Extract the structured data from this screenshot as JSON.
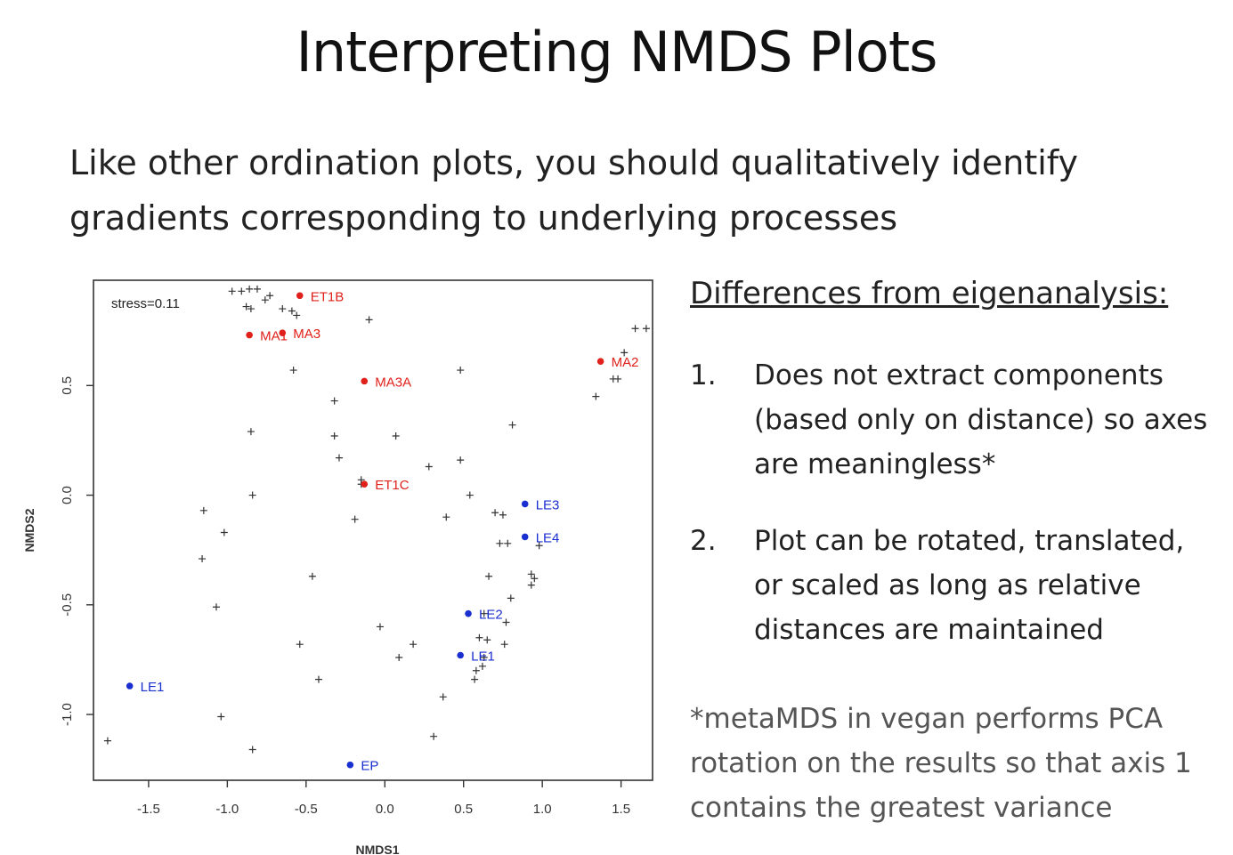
{
  "title": "Interpreting NMDS Plots",
  "intro": "Like other ordination plots, you should qualitatively identify gradients corresponding to underlying processes",
  "differences": {
    "heading": "Differences from eigenanalysis:",
    "items": [
      {
        "num": "1.",
        "text": "Does not extract components (based only on distance) so axes are meaningless*"
      },
      {
        "num": "2.",
        "text": "Plot can be rotated, translated, or scaled as long as relative distances are maintained"
      }
    ],
    "footnote": "*metaMDS in vegan performs PCA rotation on the results so that axis 1 contains the greatest variance"
  },
  "chart_data": {
    "type": "scatter",
    "xlabel": "NMDS1",
    "ylabel": "NMDS2",
    "annotation": "stress=0.11",
    "xlim": [
      -1.85,
      1.7
    ],
    "ylim": [
      -1.3,
      0.98
    ],
    "xticks": [
      -1.5,
      -1.0,
      -0.5,
      0.0,
      0.5,
      1.0,
      1.5
    ],
    "xtick_labels": [
      "-1.5",
      "-1.0",
      "-0.5",
      "0.0",
      "0.5",
      "1.0",
      "1.5"
    ],
    "yticks": [
      -1.0,
      -0.5,
      0.0,
      0.5
    ],
    "ytick_labels": [
      "-1.0",
      "-0.5",
      "0.0",
      "0.5"
    ],
    "colors": {
      "red": "#e0201a",
      "blue": "#1a2fd0",
      "cross": "#333333",
      "axis": "#333333"
    },
    "labeled_points": [
      {
        "label": "ET1B",
        "x": -0.54,
        "y": 0.91,
        "color": "red"
      },
      {
        "label": "MA1",
        "x": -0.86,
        "y": 0.73,
        "color": "red"
      },
      {
        "label": "MA3",
        "x": -0.65,
        "y": 0.74,
        "color": "red"
      },
      {
        "label": "MA3A",
        "x": -0.13,
        "y": 0.52,
        "color": "red"
      },
      {
        "label": "MA2",
        "x": 1.37,
        "y": 0.61,
        "color": "red"
      },
      {
        "label": "ET1C",
        "x": -0.13,
        "y": 0.05,
        "color": "red"
      },
      {
        "label": "LE3",
        "x": 0.89,
        "y": -0.04,
        "color": "blue"
      },
      {
        "label": "LE4",
        "x": 0.89,
        "y": -0.19,
        "color": "blue"
      },
      {
        "label": "LE2",
        "x": 0.53,
        "y": -0.54,
        "color": "blue"
      },
      {
        "label": "LE1",
        "x": 0.48,
        "y": -0.73,
        "color": "blue"
      },
      {
        "label": "LE1",
        "x": -1.62,
        "y": -0.87,
        "color": "blue"
      },
      {
        "label": "EP",
        "x": -0.22,
        "y": -1.23,
        "color": "blue"
      }
    ],
    "cross_points": [
      [
        -0.97,
        0.93
      ],
      [
        -0.91,
        0.93
      ],
      [
        -0.86,
        0.94
      ],
      [
        -0.81,
        0.94
      ],
      [
        -0.76,
        0.89
      ],
      [
        -0.73,
        0.91
      ],
      [
        -0.88,
        0.86
      ],
      [
        -0.85,
        0.85
      ],
      [
        -0.65,
        0.85
      ],
      [
        -0.59,
        0.84
      ],
      [
        -0.56,
        0.82
      ],
      [
        -0.1,
        0.8
      ],
      [
        -0.58,
        0.57
      ],
      [
        0.48,
        0.57
      ],
      [
        -0.32,
        0.43
      ],
      [
        -0.85,
        0.29
      ],
      [
        -0.32,
        0.27
      ],
      [
        0.07,
        0.27
      ],
      [
        0.81,
        0.32
      ],
      [
        -0.29,
        0.17
      ],
      [
        0.28,
        0.13
      ],
      [
        0.48,
        0.16
      ],
      [
        -0.15,
        0.07
      ],
      [
        -0.15,
        0.05
      ],
      [
        -0.84,
        0.0
      ],
      [
        0.54,
        0.0
      ],
      [
        -1.15,
        -0.07
      ],
      [
        0.7,
        -0.08
      ],
      [
        0.75,
        -0.09
      ],
      [
        0.39,
        -0.1
      ],
      [
        -0.19,
        -0.11
      ],
      [
        -1.02,
        -0.17
      ],
      [
        0.73,
        -0.22
      ],
      [
        0.78,
        -0.22
      ],
      [
        0.98,
        -0.23
      ],
      [
        -1.16,
        -0.29
      ],
      [
        -0.46,
        -0.37
      ],
      [
        0.66,
        -0.37
      ],
      [
        0.93,
        -0.36
      ],
      [
        0.95,
        -0.38
      ],
      [
        0.93,
        -0.41
      ],
      [
        -1.07,
        -0.51
      ],
      [
        0.8,
        -0.47
      ],
      [
        0.63,
        -0.54
      ],
      [
        0.77,
        -0.58
      ],
      [
        -0.03,
        -0.6
      ],
      [
        0.6,
        -0.65
      ],
      [
        0.65,
        -0.66
      ],
      [
        -0.54,
        -0.68
      ],
      [
        0.18,
        -0.68
      ],
      [
        0.76,
        -0.68
      ],
      [
        0.09,
        -0.74
      ],
      [
        0.63,
        -0.74
      ],
      [
        0.62,
        -0.78
      ],
      [
        0.58,
        -0.8
      ],
      [
        0.57,
        -0.84
      ],
      [
        -0.42,
        -0.84
      ],
      [
        0.37,
        -0.92
      ],
      [
        -1.04,
        -1.01
      ],
      [
        0.31,
        -1.1
      ],
      [
        -1.76,
        -1.12
      ],
      [
        -0.84,
        -1.16
      ],
      [
        1.34,
        0.45
      ],
      [
        1.45,
        0.53
      ],
      [
        1.48,
        0.53
      ],
      [
        1.52,
        0.65
      ],
      [
        1.59,
        0.76
      ],
      [
        1.66,
        0.76
      ]
    ]
  }
}
